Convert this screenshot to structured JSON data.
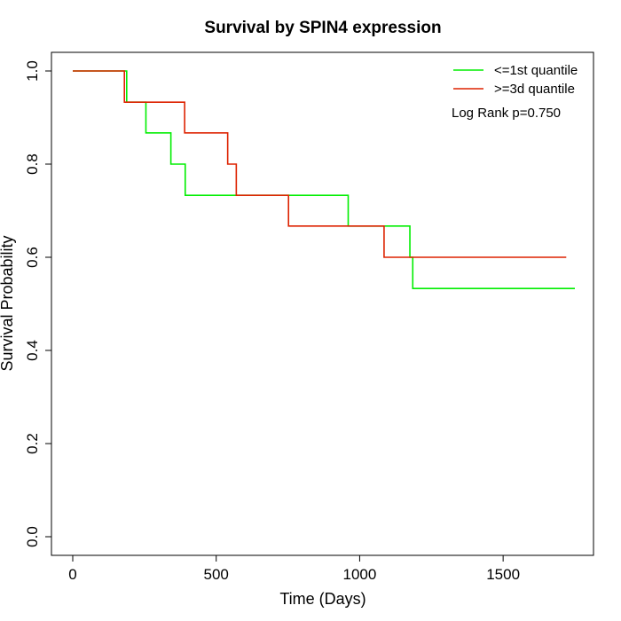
{
  "chart_data": {
    "type": "line",
    "title": "Survival by SPIN4 expression",
    "xlabel": "Time (Days)",
    "ylabel": "Survival Probability",
    "xlim": [
      0,
      1750
    ],
    "ylim": [
      0,
      1
    ],
    "x_ticks": [
      0,
      500,
      1000,
      1500
    ],
    "y_ticks": [
      0.0,
      0.2,
      0.4,
      0.6,
      0.8,
      1.0
    ],
    "x_tick_labels": [
      "0",
      "500",
      "1000",
      "1500"
    ],
    "y_tick_labels": [
      "0.0",
      "0.2",
      "0.4",
      "0.6",
      "0.8",
      "1.0"
    ],
    "grid": false,
    "legend_position": "top-right",
    "annotation": "Log Rank p=0.750",
    "series": [
      {
        "name": "<=1st quantile",
        "color": "#00ee00",
        "x": [
          0,
          188,
          255,
          342,
          392,
          960,
          1175,
          1185,
          1750
        ],
        "y": [
          1.0,
          0.933,
          0.867,
          0.8,
          0.733,
          0.667,
          0.6,
          0.533,
          0.533
        ]
      },
      {
        "name": ">=3d quantile",
        "color": "#dd2200",
        "x": [
          0,
          180,
          390,
          540,
          570,
          752,
          1085,
          1720
        ],
        "y": [
          1.0,
          0.933,
          0.867,
          0.8,
          0.733,
          0.667,
          0.6,
          0.6
        ]
      }
    ]
  }
}
